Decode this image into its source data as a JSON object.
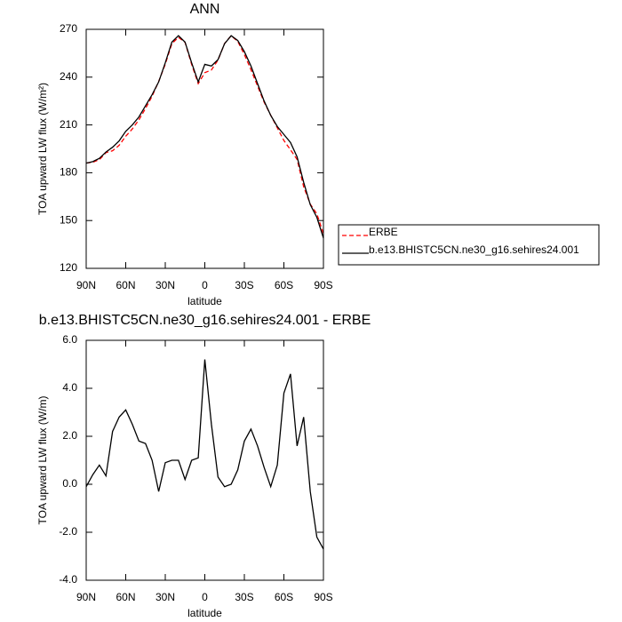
{
  "chart_data": [
    {
      "type": "line",
      "title": "ANN",
      "x_label": "latitude",
      "y_label": "TOA upward LW flux (W/m²)",
      "x": [
        90,
        85,
        80,
        75,
        70,
        65,
        60,
        55,
        50,
        45,
        40,
        35,
        30,
        25,
        20,
        15,
        10,
        5,
        0,
        -5,
        -10,
        -15,
        -20,
        -25,
        -30,
        -35,
        -40,
        -45,
        -50,
        -55,
        -60,
        -65,
        -70,
        -75,
        -80,
        -85,
        -90
      ],
      "xlim": [
        90,
        -90
      ],
      "xticks": [
        {
          "value": 90,
          "label": "90N"
        },
        {
          "value": 60,
          "label": "60N"
        },
        {
          "value": 30,
          "label": "30N"
        },
        0,
        {
          "value": -30,
          "label": "30S"
        },
        {
          "value": -60,
          "label": "60S"
        },
        {
          "value": -90,
          "label": "90S"
        }
      ],
      "ylim": [
        120,
        270
      ],
      "yticks": [
        120,
        150,
        180,
        210,
        240,
        270
      ],
      "legend": "right",
      "series": [
        {
          "name": "ERBE",
          "color": "#ff0000",
          "dash": "dashed",
          "values": [
            186.1,
            186.6,
            188.2,
            192.6,
            193.8,
            197.2,
            202.9,
            207.5,
            213.2,
            220.3,
            228,
            237.3,
            248.1,
            261,
            265,
            261.8,
            248,
            235.9,
            242.8,
            244.5,
            250.7,
            261.1,
            266,
            262.4,
            254.2,
            244.7,
            234.4,
            224.3,
            216.1,
            208.2,
            200.2,
            194.4,
            188.4,
            171.2,
            160.3,
            154.2,
            141.7
          ]
        },
        {
          "name": "b.e13.BHISTC5CN.ne30_g16.sehires24.001",
          "color": "#000000",
          "values": [
            186,
            187,
            189,
            193,
            196,
            200,
            206,
            210,
            215,
            222,
            229,
            237,
            249,
            262,
            266,
            262,
            249,
            237,
            248,
            247,
            251,
            261,
            266,
            263,
            256,
            247,
            236,
            225,
            216,
            209,
            204,
            199,
            190,
            174,
            160,
            152,
            139
          ]
        }
      ]
    },
    {
      "type": "line",
      "title": "b.e13.BHISTC5CN.ne30_g16.sehires24.001 - ERBE",
      "x_label": "latitude",
      "y_label": "TOA upward LW flux (W/m)",
      "x": [
        90,
        85,
        80,
        75,
        70,
        65,
        60,
        55,
        50,
        45,
        40,
        35,
        30,
        25,
        20,
        15,
        10,
        5,
        0,
        -5,
        -10,
        -15,
        -20,
        -25,
        -30,
        -35,
        -40,
        -45,
        -50,
        -55,
        -60,
        -65,
        -70,
        -75,
        -80,
        -85,
        -90
      ],
      "xlim": [
        90,
        -90
      ],
      "xticks": [
        {
          "value": 90,
          "label": "90N"
        },
        {
          "value": 60,
          "label": "60N"
        },
        {
          "value": 30,
          "label": "30N"
        },
        0,
        {
          "value": -30,
          "label": "30S"
        },
        {
          "value": -60,
          "label": "60S"
        },
        {
          "value": -90,
          "label": "90S"
        }
      ],
      "ylim": [
        -4,
        6
      ],
      "yticks": [
        {
          "value": -4,
          "label": "-4.0"
        },
        {
          "value": -2,
          "label": "-2.0"
        },
        {
          "value": 0,
          "label": "0.0"
        },
        {
          "value": 2,
          "label": "2.0"
        },
        {
          "value": 4,
          "label": "4.0"
        },
        {
          "value": 6,
          "label": "6.0"
        }
      ],
      "series": [
        {
          "color": "#000000",
          "values": [
            -0.1,
            0.4,
            0.8,
            0.35,
            2.2,
            2.8,
            3.1,
            2.5,
            1.8,
            1.7,
            1.0,
            -0.3,
            0.9,
            1.0,
            1.0,
            0.2,
            1.0,
            1.1,
            5.2,
            2.5,
            0.3,
            -0.1,
            0.0,
            0.6,
            1.8,
            2.3,
            1.6,
            0.7,
            -0.1,
            0.8,
            3.8,
            4.6,
            1.6,
            2.8,
            -0.3,
            -2.2,
            -2.7
          ]
        }
      ]
    }
  ]
}
